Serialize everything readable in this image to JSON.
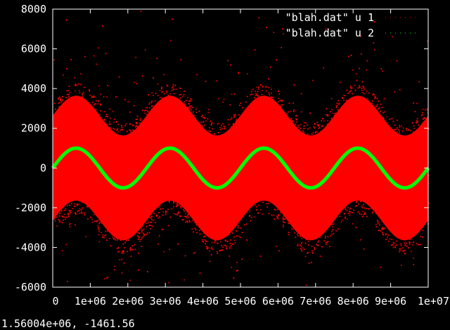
{
  "chart_data": {
    "type": "scatter",
    "title": "",
    "xlabel": "",
    "ylabel": "",
    "xlim": [
      0,
      10000000
    ],
    "ylim": [
      -6000,
      8000
    ],
    "x_ticks": [
      0,
      1000000,
      2000000,
      3000000,
      4000000,
      5000000,
      6000000,
      7000000,
      8000000,
      9000000,
      10000000
    ],
    "x_tick_labels": [
      "0",
      "1e+06",
      "2e+06",
      "3e+06",
      "4e+06",
      "5e+06",
      "6e+06",
      "7e+06",
      "8e+06",
      "9e+06",
      "1e+07"
    ],
    "y_ticks": [
      -6000,
      -4000,
      -2000,
      0,
      2000,
      4000,
      6000,
      8000
    ],
    "y_tick_labels": [
      "-6000",
      "-4000",
      "-2000",
      "0",
      "2000",
      "4000",
      "6000",
      "8000"
    ],
    "grid": false,
    "legend_position": "top-right",
    "series": [
      {
        "name": "\"blah.dat\" u 1",
        "color": "#ff0000",
        "model": "sine plus noise",
        "sine_amplitude": 1000,
        "sine_period": 2500000,
        "noise_spread": 3300,
        "x": [
          0,
          625000,
          1250000,
          1875000,
          2500000,
          3125000,
          3750000,
          4375000,
          5000000,
          5625000,
          6250000,
          6875000,
          7500000,
          8125000,
          8750000,
          9375000,
          10000000
        ],
        "y_upper": [
          3300,
          4300,
          3300,
          2300,
          3300,
          4300,
          3300,
          2300,
          3300,
          4300,
          3300,
          2300,
          3300,
          4300,
          3300,
          2300,
          3300
        ],
        "y_lower": [
          -3300,
          -2300,
          -3300,
          -4300,
          -3300,
          -2300,
          -3300,
          -4300,
          -3300,
          -2300,
          -3300,
          -4300,
          -3300,
          -2300,
          -3300,
          -4300,
          -3300
        ]
      },
      {
        "name": "\"blah.dat\" u 2",
        "color": "#00ff00",
        "model": "sine",
        "x": [
          0,
          625000,
          1250000,
          1875000,
          2500000,
          3125000,
          3750000,
          4375000,
          5000000,
          5625000,
          6250000,
          6875000,
          7500000,
          8125000,
          8750000,
          9375000,
          10000000
        ],
        "y": [
          0,
          1000,
          0,
          -1000,
          0,
          1000,
          0,
          -1000,
          0,
          1000,
          0,
          -1000,
          0,
          1000,
          0,
          -1000,
          0
        ]
      }
    ]
  },
  "status": {
    "coordinates": "1.56004e+06, -1461.56"
  }
}
